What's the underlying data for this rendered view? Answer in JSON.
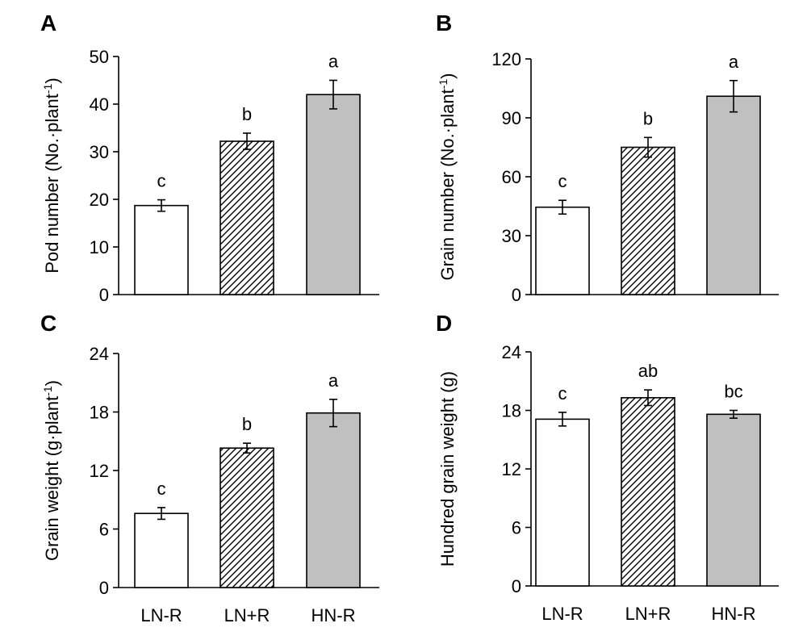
{
  "chart_data": [
    {
      "panel": "A",
      "type": "bar",
      "ylabel": "Pod number (No.·plant⁻¹)",
      "categories": [
        "LN-R",
        "LN+R",
        "HN-R"
      ],
      "values": [
        18.7,
        32.2,
        42.0
      ],
      "errors": [
        1.2,
        1.7,
        3.0
      ],
      "letters": [
        "c",
        "b",
        "a"
      ],
      "ylim": [
        0,
        50
      ],
      "yticks": [
        0,
        10,
        20,
        30,
        40,
        50
      ],
      "fills": [
        "white",
        "hatched",
        "gray"
      ],
      "show_xlabels": false
    },
    {
      "panel": "B",
      "type": "bar",
      "ylabel": "Grain number (No.·plant⁻¹)",
      "categories": [
        "LN-R",
        "LN+R",
        "HN-R"
      ],
      "values": [
        44.5,
        75.0,
        101.0
      ],
      "errors": [
        3.5,
        5.0,
        8.0
      ],
      "letters": [
        "c",
        "b",
        "a"
      ],
      "ylim": [
        0,
        120
      ],
      "yticks": [
        0,
        30,
        60,
        90,
        120
      ],
      "fills": [
        "white",
        "hatched",
        "gray"
      ],
      "show_xlabels": false
    },
    {
      "panel": "C",
      "type": "bar",
      "ylabel": "Grain weight (g·plant⁻¹)",
      "categories": [
        "LN-R",
        "LN+R",
        "HN-R"
      ],
      "values": [
        7.6,
        14.3,
        17.9
      ],
      "errors": [
        0.6,
        0.5,
        1.4
      ],
      "letters": [
        "c",
        "b",
        "a"
      ],
      "ylim": [
        0,
        24
      ],
      "yticks": [
        0,
        6,
        12,
        18,
        24
      ],
      "fills": [
        "white",
        "hatched",
        "gray"
      ],
      "show_xlabels": true
    },
    {
      "panel": "D",
      "type": "bar",
      "ylabel": "Hundred grain weight (g)",
      "categories": [
        "LN-R",
        "LN+R",
        "HN-R"
      ],
      "values": [
        17.1,
        19.3,
        17.6
      ],
      "errors": [
        0.7,
        0.8,
        0.4
      ],
      "letters": [
        "c",
        "ab",
        "bc"
      ],
      "ylim": [
        0,
        24
      ],
      "yticks": [
        0,
        6,
        12,
        18,
        24
      ],
      "fills": [
        "white",
        "hatched",
        "gray"
      ],
      "show_xlabels": true
    }
  ],
  "colors": {
    "bar_white": "#ffffff",
    "bar_gray": "#c0c0c0",
    "stroke": "#000000"
  }
}
